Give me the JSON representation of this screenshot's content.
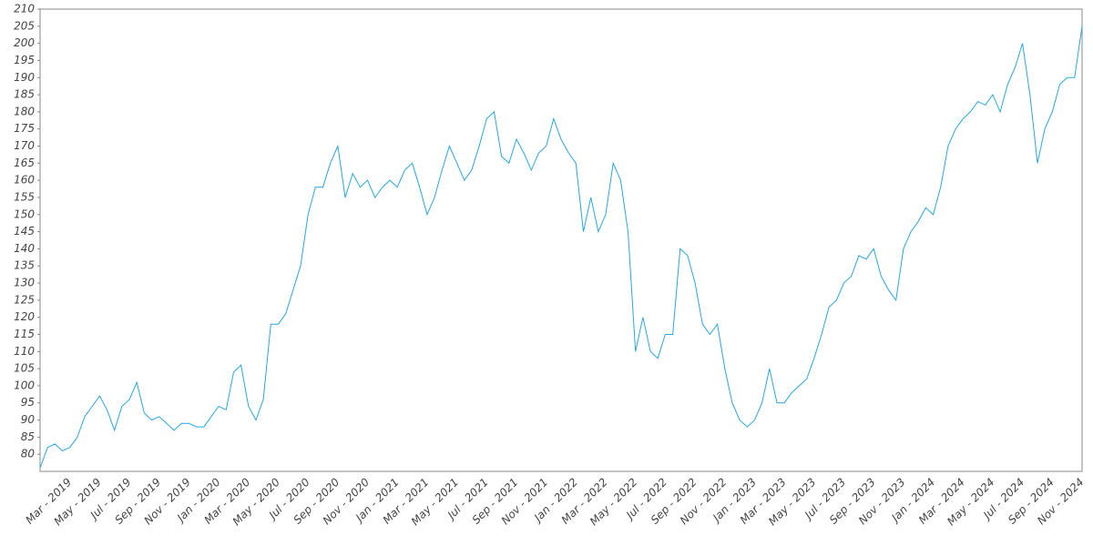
{
  "chart_data": {
    "type": "line",
    "categories": [
      null,
      null,
      null,
      null,
      "Mar - 2019",
      null,
      null,
      null,
      "May - 2019",
      null,
      null,
      null,
      "Jul - 2019",
      null,
      null,
      null,
      "Sep - 2019",
      null,
      null,
      null,
      "Nov - 2019",
      null,
      null,
      null,
      "Jan - 2020",
      null,
      null,
      null,
      "Mar - 2020",
      null,
      null,
      null,
      "May - 2020",
      null,
      null,
      null,
      "Jul - 2020",
      null,
      null,
      null,
      "Sep - 2020",
      null,
      null,
      null,
      "Nov - 2020",
      null,
      null,
      null,
      "Jan - 2021",
      null,
      null,
      null,
      "Mar - 2021",
      null,
      null,
      null,
      "May - 2021",
      null,
      null,
      null,
      "Jul - 2021",
      null,
      null,
      null,
      "Sep - 2021",
      null,
      null,
      null,
      "Nov - 2021",
      null,
      null,
      null,
      "Jan - 2022",
      null,
      null,
      null,
      "Mar - 2022",
      null,
      null,
      null,
      "May - 2022",
      null,
      null,
      null,
      "Jul - 2022",
      null,
      null,
      null,
      "Sep - 2022",
      null,
      null,
      null,
      "Nov - 2022",
      null,
      null,
      null,
      "Jan - 2023",
      null,
      null,
      null,
      "Mar - 2023",
      null,
      null,
      null,
      "May - 2023",
      null,
      null,
      null,
      "Jul - 2023",
      null,
      null,
      null,
      "Sep - 2023",
      null,
      null,
      null,
      "Nov - 2023",
      null,
      null,
      null,
      "Jan - 2024",
      null,
      null,
      null,
      "Mar - 2024",
      null,
      null,
      null,
      "May - 2024",
      null,
      null,
      null,
      "Jul - 2024",
      null,
      null,
      null,
      "Sep - 2024",
      null,
      null,
      null,
      "Nov - 2024"
    ],
    "values": [
      76,
      82,
      83,
      81,
      82,
      85,
      91,
      94,
      97,
      93,
      87,
      94,
      96,
      101,
      92,
      90,
      91,
      89,
      87,
      89,
      89,
      88,
      88,
      91,
      94,
      93,
      104,
      106,
      94,
      90,
      96,
      118,
      118,
      121,
      128,
      135,
      150,
      158,
      158,
      165,
      170,
      155,
      162,
      158,
      160,
      155,
      158,
      160,
      158,
      163,
      165,
      158,
      150,
      155,
      163,
      170,
      165,
      160,
      163,
      170,
      178,
      180,
      167,
      165,
      172,
      168,
      163,
      168,
      170,
      178,
      172,
      168,
      165,
      145,
      155,
      145,
      150,
      165,
      160,
      145,
      110,
      120,
      110,
      108,
      115,
      115,
      140,
      138,
      130,
      118,
      115,
      118,
      105,
      95,
      90,
      88,
      90,
      95,
      105,
      95,
      95,
      98,
      100,
      102,
      108,
      115,
      123,
      125,
      130,
      132,
      138,
      137,
      140,
      132,
      128,
      125,
      140,
      145,
      148,
      152,
      150,
      158,
      170,
      175,
      178,
      180,
      183,
      182,
      185,
      180,
      188,
      193,
      200,
      185,
      165,
      175,
      180,
      188,
      190,
      190,
      205
    ],
    "color": "#2aa6dd",
    "ylim": [
      75,
      210
    ],
    "yticks": [
      80,
      85,
      90,
      95,
      100,
      105,
      110,
      115,
      120,
      125,
      130,
      135,
      140,
      145,
      150,
      155,
      160,
      165,
      170,
      175,
      180,
      185,
      190,
      195,
      200,
      205,
      210
    ]
  }
}
